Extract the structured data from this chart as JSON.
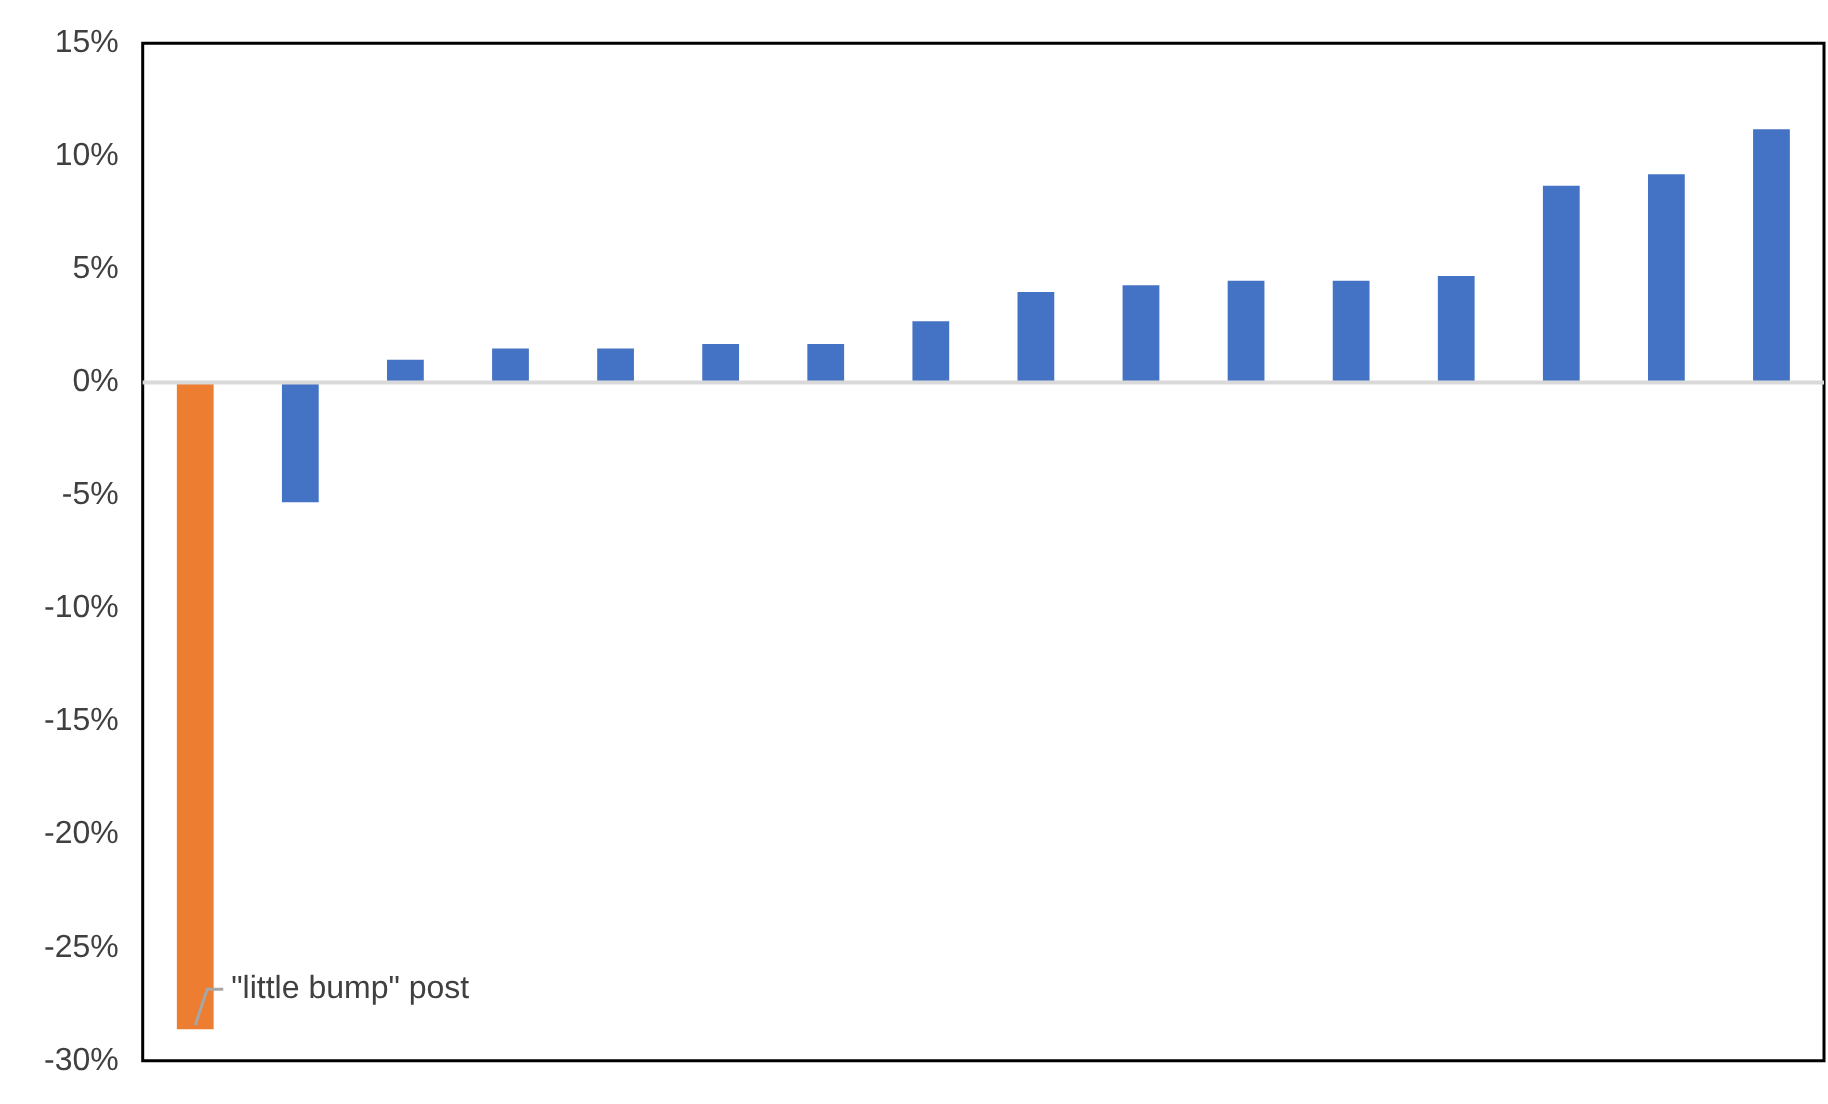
{
  "chart_data": {
    "type": "bar",
    "categories": [
      null,
      null,
      null,
      null,
      null,
      null,
      null,
      null,
      null,
      null,
      null,
      null,
      null,
      null,
      null,
      null
    ],
    "values": [
      -28.6,
      -5.3,
      1.0,
      1.5,
      1.5,
      1.7,
      1.7,
      2.7,
      4.0,
      4.3,
      4.5,
      4.5,
      4.7,
      8.7,
      9.2,
      11.2
    ],
    "colors": [
      "#ed7d31",
      "#4472c4",
      "#4472c4",
      "#4472c4",
      "#4472c4",
      "#4472c4",
      "#4472c4",
      "#4472c4",
      "#4472c4",
      "#4472c4",
      "#4472c4",
      "#4472c4",
      "#4472c4",
      "#4472c4",
      "#4472c4",
      "#4472c4"
    ],
    "ylim": [
      -30,
      15
    ],
    "yticks": [
      {
        "value": -30,
        "label": "-30%"
      },
      {
        "value": -25,
        "label": "-25%"
      },
      {
        "value": -20,
        "label": "-20%"
      },
      {
        "value": -15,
        "label": "-15%"
      },
      {
        "value": -10,
        "label": "-10%"
      },
      {
        "value": -5,
        "label": "-5%"
      },
      {
        "value": 0,
        "label": "0%"
      },
      {
        "value": 5,
        "label": "5%"
      },
      {
        "value": 10,
        "label": "10%"
      },
      {
        "value": 15,
        "label": "15%"
      }
    ],
    "legend": false,
    "annotations": [
      "\"little bump\" post"
    ]
  }
}
